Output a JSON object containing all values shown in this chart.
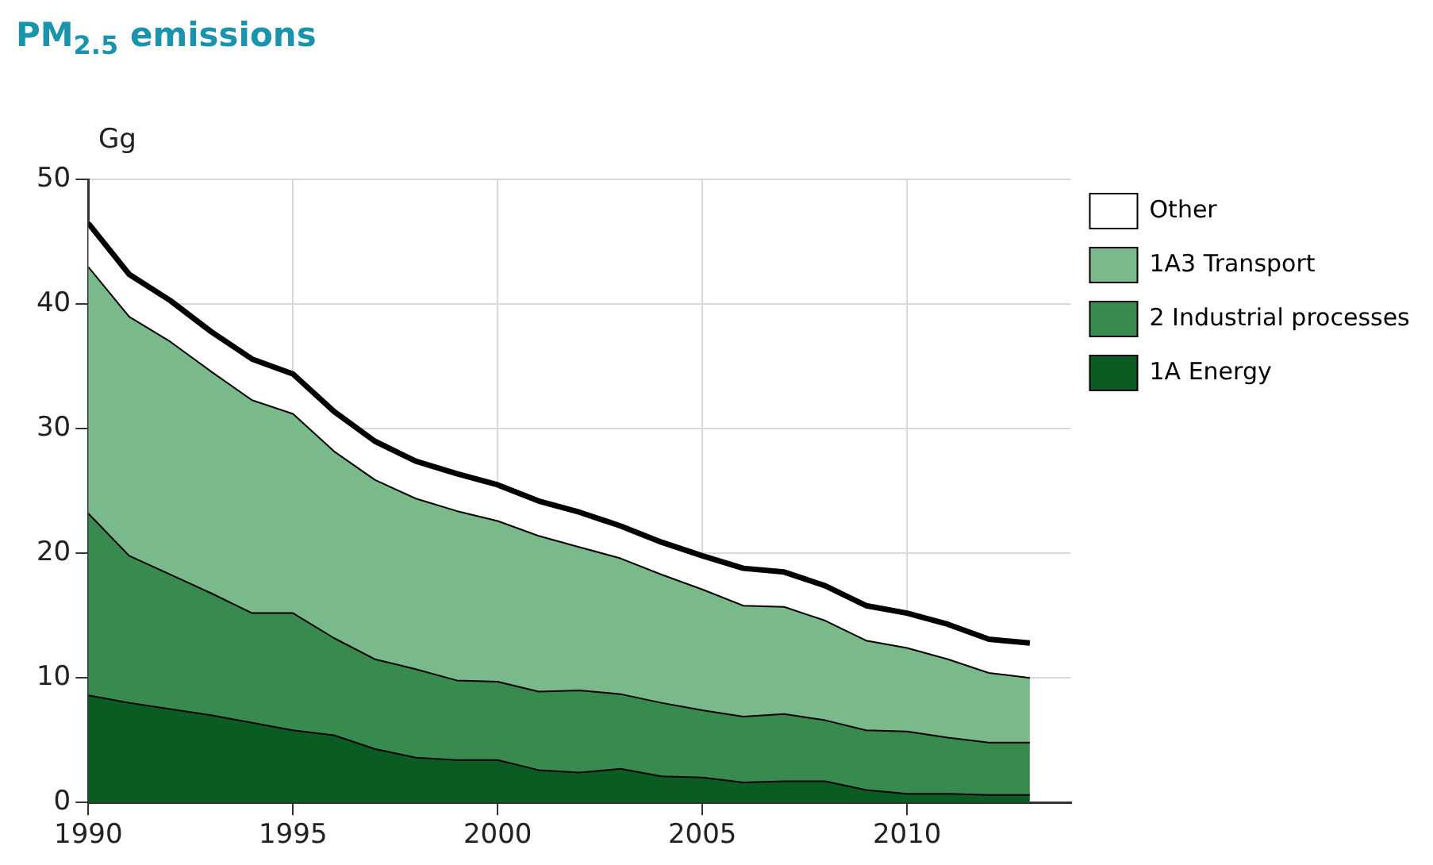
{
  "chart_data": {
    "type": "area",
    "title": "PM$_{2.5}$ emissions",
    "ylabel": "Gg",
    "stacked": true,
    "x": [
      1990,
      1991,
      1992,
      1993,
      1994,
      1995,
      1996,
      1997,
      1998,
      1999,
      2000,
      2001,
      2002,
      2003,
      2004,
      2005,
      2006,
      2007,
      2008,
      2009,
      2010,
      2011,
      2012,
      2013
    ],
    "series": [
      {
        "name": "1A Energy",
        "color": "#0a5c22",
        "values": [
          8.6,
          8.0,
          7.5,
          7.0,
          6.4,
          5.8,
          5.4,
          4.3,
          3.6,
          3.4,
          3.4,
          2.6,
          2.4,
          2.7,
          2.1,
          2.0,
          1.6,
          1.7,
          1.7,
          1.0,
          0.7,
          0.7,
          0.6,
          0.6
        ]
      },
      {
        "name": "2 Industrial processes",
        "color": "#388a4e",
        "values": [
          14.6,
          11.8,
          10.8,
          9.8,
          8.8,
          9.4,
          7.8,
          7.2,
          7.1,
          6.4,
          6.3,
          6.3,
          6.6,
          6.0,
          5.9,
          5.4,
          5.3,
          5.4,
          4.9,
          4.8,
          5.0,
          4.5,
          4.2,
          4.2
        ]
      },
      {
        "name": "1A3 Transport",
        "color": "#7ab98a",
        "values": [
          19.8,
          19.2,
          18.7,
          17.8,
          17.1,
          16.0,
          15.0,
          14.4,
          13.7,
          13.6,
          12.9,
          12.5,
          11.5,
          10.9,
          10.3,
          9.7,
          8.9,
          8.6,
          8.0,
          7.2,
          6.7,
          6.3,
          5.6,
          5.2
        ]
      },
      {
        "name": "Other",
        "color": "#ffffff",
        "values": [
          3.5,
          3.4,
          3.3,
          3.2,
          3.3,
          3.2,
          3.2,
          3.1,
          3.0,
          3.0,
          2.9,
          2.8,
          2.8,
          2.6,
          2.6,
          2.7,
          3.0,
          2.8,
          2.8,
          2.8,
          2.8,
          2.8,
          2.7,
          2.8
        ]
      }
    ],
    "xlim": [
      1990,
      2014
    ],
    "xticks": [
      1990,
      1995,
      2000,
      2005,
      2010
    ],
    "ylim": [
      0,
      50
    ],
    "yticks": [
      0,
      10,
      20,
      30,
      40,
      50
    ],
    "grid": true,
    "legend": "right"
  }
}
